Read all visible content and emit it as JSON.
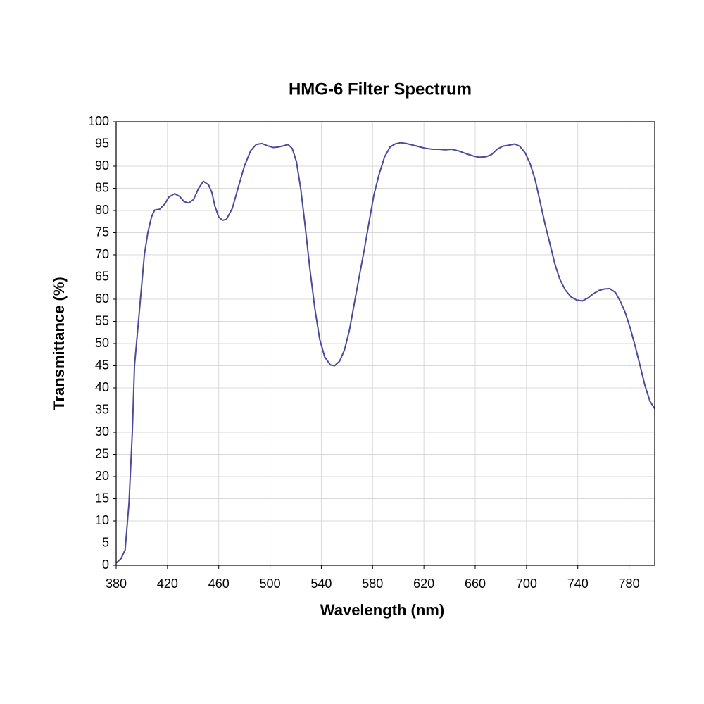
{
  "chart_data": {
    "type": "line",
    "title": "HMG-6 Filter Spectrum",
    "x_label": "Wavelength (nm)",
    "y_label": "Transmittance (%)",
    "xlim": [
      380,
      800
    ],
    "ylim": [
      0,
      100
    ],
    "xticks": [
      380,
      420,
      460,
      500,
      540,
      580,
      620,
      660,
      700,
      740,
      780
    ],
    "yticks": [
      0,
      5,
      10,
      15,
      20,
      25,
      30,
      35,
      40,
      45,
      50,
      55,
      60,
      65,
      70,
      75,
      80,
      85,
      90,
      95,
      100
    ],
    "grid": true,
    "series": [
      {
        "color": "#4b4b9a",
        "x": [
          380,
          383.8,
          387,
          390,
          392.6,
          394.3,
          398,
          402,
          404.7,
          407.5,
          410,
          414,
          418,
          421,
          425.6,
          429.4,
          433,
          436.6,
          440.4,
          444.3,
          448,
          452,
          454.7,
          457,
          460,
          463,
          466,
          470.6,
          475,
          480,
          484.9,
          489.3,
          493.7,
          498,
          502.5,
          506.3,
          510.7,
          514,
          517.3,
          520.6,
          523.9,
          527.2,
          531,
          534.9,
          538.7,
          542.6,
          547,
          550.3,
          554.2,
          558,
          561.9,
          565.7,
          569.5,
          573.4,
          577.3,
          581,
          584.9,
          589.2,
          593.6,
          597.5,
          601.9,
          606.3,
          610.6,
          616,
          621.6,
          627,
          631.5,
          636.5,
          642,
          647.4,
          652.9,
          658.4,
          662.8,
          668.3,
          672.7,
          677.1,
          681.5,
          685.9,
          690.8,
          694.7,
          699,
          702.9,
          706.7,
          710.6,
          714.4,
          718.3,
          722.1,
          726,
          730.4,
          734.8,
          739.2,
          743.6,
          748,
          752.5,
          756.8,
          760.6,
          765,
          769.4,
          773.2,
          777,
          780.9,
          784.7,
          788.6,
          792.4,
          796.3,
          800
        ],
        "values": [
          0.5,
          1.5,
          3.5,
          14,
          30,
          45,
          57,
          70,
          75,
          78.5,
          80.1,
          80.3,
          81.5,
          83,
          83.8,
          83.2,
          82,
          81.7,
          82.5,
          85,
          86.6,
          85.8,
          84,
          81,
          78.5,
          77.8,
          78,
          80.5,
          85,
          90,
          93.5,
          94.9,
          95.1,
          94.6,
          94.2,
          94.3,
          94.6,
          94.9,
          94,
          91,
          85,
          77,
          67,
          58,
          51,
          47,
          45.2,
          45,
          46,
          48.5,
          53,
          59,
          65,
          71,
          77.5,
          83.5,
          88,
          92,
          94.3,
          95,
          95.3,
          95.1,
          94.8,
          94.4,
          94,
          93.8,
          93.8,
          93.7,
          93.8,
          93.4,
          92.8,
          92.3,
          92,
          92.1,
          92.6,
          93.8,
          94.5,
          94.7,
          95,
          94.5,
          93,
          90.5,
          87,
          82,
          77,
          72.5,
          68,
          64.5,
          62,
          60.5,
          59.8,
          59.6,
          60.3,
          61.3,
          62,
          62.3,
          62.4,
          61.5,
          59.5,
          57,
          53.5,
          49.5,
          45,
          40.5,
          37,
          35.3
        ]
      }
    ]
  }
}
